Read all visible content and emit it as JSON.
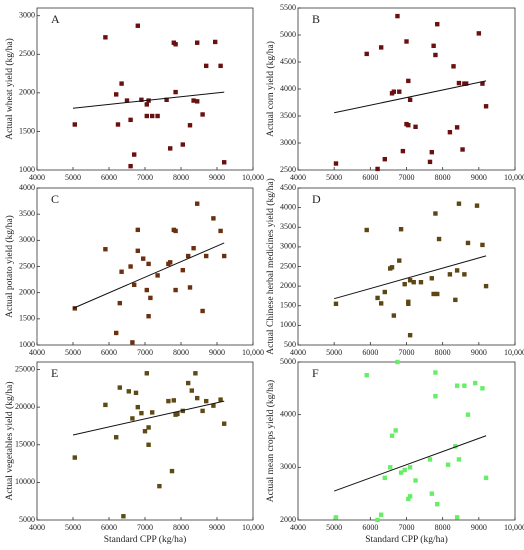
{
  "chart_data": [
    {
      "type": "scatter",
      "label": "A",
      "ylabel": "Actual wheat yield (kg/ha)",
      "color": "#6b1010",
      "xlim": [
        4000,
        10000
      ],
      "xticks": [
        4000,
        5000,
        6000,
        7000,
        8000,
        9000,
        {
          "value": 10000,
          "label": "10,000"
        }
      ],
      "ylim": [
        1000,
        3100
      ],
      "yticks": [
        1000,
        1500,
        2000,
        2500,
        3000
      ],
      "x": [
        5050,
        5900,
        6200,
        6350,
        6250,
        6500,
        6600,
        6700,
        6800,
        6900,
        7050,
        7050,
        7100,
        7200,
        7350,
        7600,
        7700,
        7800,
        7850,
        7850,
        8050,
        8250,
        8350,
        8450,
        8450,
        8600,
        8700,
        8950,
        9100,
        9200,
        6600
      ],
      "values": [
        1590,
        2720,
        1980,
        2120,
        1590,
        1900,
        1650,
        1200,
        2870,
        1910,
        1700,
        1850,
        1900,
        1700,
        1700,
        1910,
        1280,
        2650,
        2630,
        2010,
        1330,
        1580,
        1900,
        1890,
        2650,
        1720,
        2350,
        2660,
        2350,
        1100,
        1050
      ],
      "trendline": {
        "x": [
          5000,
          9200
        ],
        "y": [
          1800,
          2010
        ]
      }
    },
    {
      "type": "scatter",
      "label": "B",
      "ylabel": "Actual corn yield (kg/ha)",
      "color": "#6b1010",
      "xlim": [
        4000,
        10000
      ],
      "xticks": [
        4000,
        5000,
        6000,
        7000,
        8000,
        9000,
        {
          "value": 10000,
          "label": "10,000"
        }
      ],
      "ylim": [
        2500,
        5500
      ],
      "yticks": [
        2500,
        3000,
        3500,
        4000,
        4500,
        5000,
        5500
      ],
      "x": [
        5050,
        5900,
        6200,
        6300,
        6400,
        6600,
        6650,
        6750,
        6800,
        6900,
        7000,
        7000,
        7050,
        7100,
        7250,
        7750,
        7800,
        7850,
        7700,
        7650,
        8200,
        8300,
        8400,
        8450,
        8550,
        8600,
        8650,
        9000,
        9100,
        9200,
        7050
      ],
      "values": [
        2620,
        4650,
        2520,
        4770,
        2700,
        3920,
        3950,
        5350,
        3950,
        2850,
        4880,
        3350,
        4150,
        3800,
        3300,
        4800,
        4630,
        5200,
        2830,
        2650,
        3200,
        4420,
        3290,
        4110,
        2880,
        4100,
        4100,
        5030,
        4100,
        3680,
        3330
      ],
      "trendline": {
        "x": [
          5000,
          9200
        ],
        "y": [
          3560,
          4150
        ]
      }
    },
    {
      "type": "scatter",
      "label": "C",
      "ylabel": "Actual potato yield (kg/ha)",
      "color": "#6b3010",
      "xlim": [
        4000,
        10000
      ],
      "xticks": [
        4000,
        5000,
        6000,
        7000,
        8000,
        9000,
        {
          "value": 10000,
          "label": "10,000"
        }
      ],
      "ylim": [
        1000,
        4000
      ],
      "yticks": [
        1000,
        1500,
        2000,
        2500,
        3000,
        3500,
        4000
      ],
      "x": [
        5050,
        5900,
        6200,
        6300,
        6350,
        6600,
        6650,
        6700,
        6800,
        6800,
        6950,
        7050,
        7100,
        7150,
        7100,
        7350,
        7700,
        7800,
        7850,
        7850,
        8050,
        8200,
        8250,
        8350,
        8450,
        8600,
        8700,
        8900,
        9100,
        9200,
        7650
      ],
      "values": [
        1700,
        2830,
        1230,
        1800,
        2400,
        2500,
        1050,
        2150,
        2800,
        3200,
        2650,
        2050,
        1550,
        1900,
        2550,
        2330,
        2580,
        3200,
        3180,
        2050,
        2430,
        2700,
        2100,
        2850,
        3700,
        1650,
        2700,
        3420,
        3180,
        2700,
        2550
      ],
      "trendline": {
        "x": [
          5000,
          9200
        ],
        "y": [
          1700,
          2950
        ]
      }
    },
    {
      "type": "scatter",
      "label": "D",
      "ylabel": "Actual Chinese herbal medicines yield (kg/ha)",
      "color": "#5e4514",
      "xlim": [
        4000,
        10000
      ],
      "xticks": [
        4000,
        5000,
        6000,
        7000,
        8000,
        9000,
        {
          "value": 10000,
          "label": "10,000"
        }
      ],
      "ylim": [
        500,
        4500
      ],
      "yticks": [
        500,
        1000,
        1500,
        2000,
        2500,
        3000,
        3500,
        4000,
        4500
      ],
      "x": [
        5050,
        5900,
        6200,
        6300,
        6400,
        6550,
        6600,
        6650,
        6800,
        6850,
        6950,
        7050,
        7100,
        7100,
        7200,
        7400,
        7700,
        7750,
        7800,
        7850,
        7900,
        8200,
        8350,
        8400,
        8450,
        8600,
        8700,
        8950,
        9100,
        9200,
        7050
      ],
      "values": [
        1550,
        3430,
        1700,
        1560,
        1850,
        2450,
        2480,
        1250,
        2650,
        3450,
        2050,
        1550,
        750,
        2150,
        2100,
        2100,
        2200,
        1800,
        3850,
        1800,
        3200,
        2300,
        1650,
        2400,
        4100,
        2300,
        3100,
        4050,
        3050,
        2000,
        1600
      ],
      "trendline": {
        "x": [
          5000,
          9200
        ],
        "y": [
          1680,
          2770
        ]
      }
    },
    {
      "type": "scatter",
      "label": "E",
      "xlabel": "Standard CPP (kg/ha)",
      "ylabel": "Actual vegetables yield (kg/ha)",
      "color": "#5e4a14",
      "xlim": [
        4000,
        10000
      ],
      "xticks": [
        4000,
        5000,
        6000,
        7000,
        8000,
        9000,
        {
          "value": 10000,
          "label": "10,000"
        }
      ],
      "ylim": [
        5000,
        26000
      ],
      "yticks": [
        5000,
        10000,
        15000,
        20000,
        25000
      ],
      "x": [
        5050,
        5900,
        6200,
        6300,
        6400,
        6550,
        6650,
        6750,
        6800,
        6900,
        7000,
        7100,
        7050,
        7100,
        7200,
        7400,
        7650,
        7750,
        7800,
        7850,
        8050,
        8200,
        8300,
        8400,
        8450,
        8600,
        8700,
        8900,
        9100,
        9200,
        7900
      ],
      "values": [
        13300,
        20300,
        16000,
        22600,
        5500,
        22100,
        18500,
        21900,
        20000,
        19200,
        16800,
        17300,
        24500,
        15000,
        19300,
        9500,
        20800,
        11500,
        20900,
        19000,
        19500,
        23200,
        22200,
        24500,
        21200,
        19500,
        20800,
        20200,
        21000,
        17800,
        19100
      ],
      "trendline": {
        "x": [
          5000,
          9200
        ],
        "y": [
          16300,
          20800
        ]
      }
    },
    {
      "type": "scatter",
      "label": "F",
      "xlabel": "Standard CPP (kg/ha)",
      "ylabel": "Actual mean crops yield (kg/ha)",
      "color": "#66ee66",
      "xlim": [
        4000,
        10000
      ],
      "xticks": [
        4000,
        5000,
        6000,
        7000,
        8000,
        9000,
        {
          "value": 10000,
          "label": "10,000"
        }
      ],
      "ylim": [
        2000,
        5000
      ],
      "yticks": [
        2000,
        3000,
        4000,
        5000
      ],
      "x": [
        5050,
        5900,
        6200,
        6300,
        6400,
        6550,
        6600,
        6700,
        6750,
        6850,
        6950,
        7050,
        7100,
        7100,
        7250,
        7650,
        7700,
        7800,
        7800,
        7850,
        8150,
        8350,
        8400,
        8450,
        8600,
        8700,
        8900,
        9100,
        9200,
        8400
      ],
      "values": [
        2050,
        4750,
        2000,
        2100,
        2800,
        3000,
        3600,
        3700,
        5000,
        2900,
        2950,
        2400,
        2450,
        3000,
        2750,
        3150,
        2500,
        4800,
        4350,
        2300,
        3050,
        3400,
        2050,
        3150,
        4550,
        4000,
        4600,
        4500,
        2800,
        4550
      ],
      "trendline": {
        "x": [
          5000,
          9200
        ],
        "y": [
          2550,
          3600
        ]
      }
    }
  ]
}
